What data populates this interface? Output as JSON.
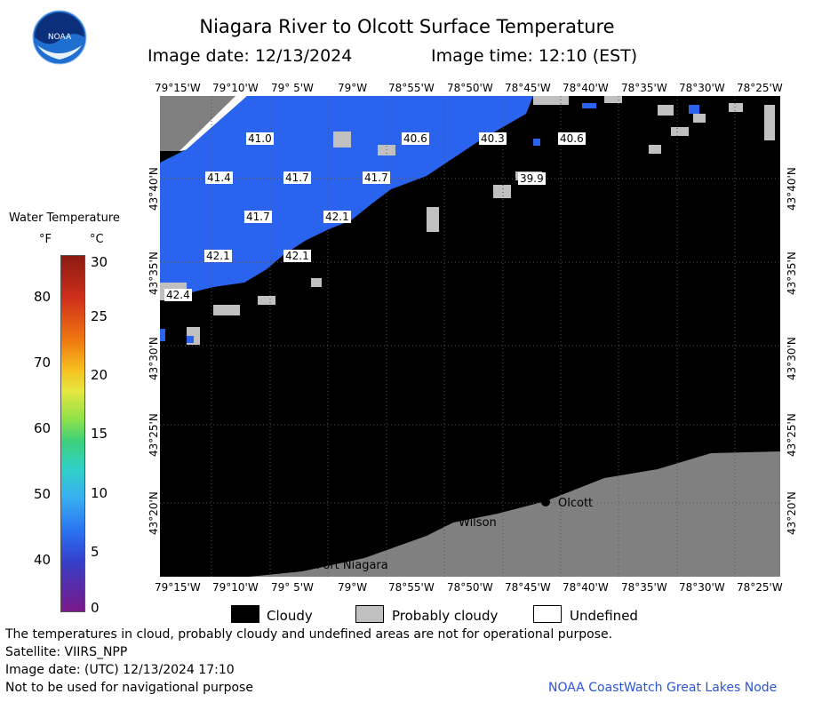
{
  "header": {
    "title": "Niagara River to Olcott Surface Temperature",
    "image_date_label": "Image date: 12/13/2024",
    "image_time_label": "Image time: 12:10 (EST)"
  },
  "logo": {
    "text": "NOAA"
  },
  "map": {
    "top_lon_ticks": [
      "79°15'W",
      "79°10'W",
      "79° 5'W",
      "79°W",
      "78°55'W",
      "78°50'W",
      "78°45'W",
      "78°40'W",
      "78°35'W",
      "78°30'W",
      "78°25'W"
    ],
    "bottom_lon_ticks": [
      "79°15'W",
      "79°10'W",
      "79° 5'W",
      "79°W",
      "78°55'W",
      "78°50'W",
      "78°45'W",
      "78°40'W",
      "78°35'W",
      "78°30'W",
      "78°25'W"
    ],
    "lat_ticks": [
      "43°40'N",
      "43°35'N",
      "43°30'N",
      "43°25'N",
      "43°20'N"
    ],
    "temperature_labels": [
      "41.0",
      "40.6",
      "40.3",
      "40.6",
      "39.9",
      "41.4",
      "41.7",
      "41.7",
      "41.7",
      "42.1",
      "42.1",
      "42.1",
      "42.4"
    ],
    "places": [
      "Olcott",
      "Wilson",
      "Port Niagara"
    ]
  },
  "legend": {
    "title": "Water Temperature",
    "unit_f": "°F",
    "unit_c": "°C",
    "f_ticks": [
      "80",
      "70",
      "60",
      "50",
      "40"
    ],
    "c_ticks": [
      "30",
      "25",
      "20",
      "15",
      "10",
      "5",
      "0"
    ]
  },
  "key": {
    "cloudy": "Cloudy",
    "probably_cloudy": "Probably cloudy",
    "undefined": "Undefined"
  },
  "footer": {
    "line1": "The temperatures in cloud, probably cloudy and undefined areas are not for operational purpose.",
    "line2": "Satellite: VIIRS_NPP",
    "line3": "Image date: (UTC) 12/13/2024  17:10",
    "line4": "Not to be used for navigational purpose",
    "credit": "NOAA CoastWatch Great Lakes Node"
  },
  "colors": {
    "cloud": "#000000",
    "probably_cloudy": "#c0c0c0",
    "land": "#808080",
    "water_blue": "#1f5fef",
    "credit": "#2b55d6"
  }
}
